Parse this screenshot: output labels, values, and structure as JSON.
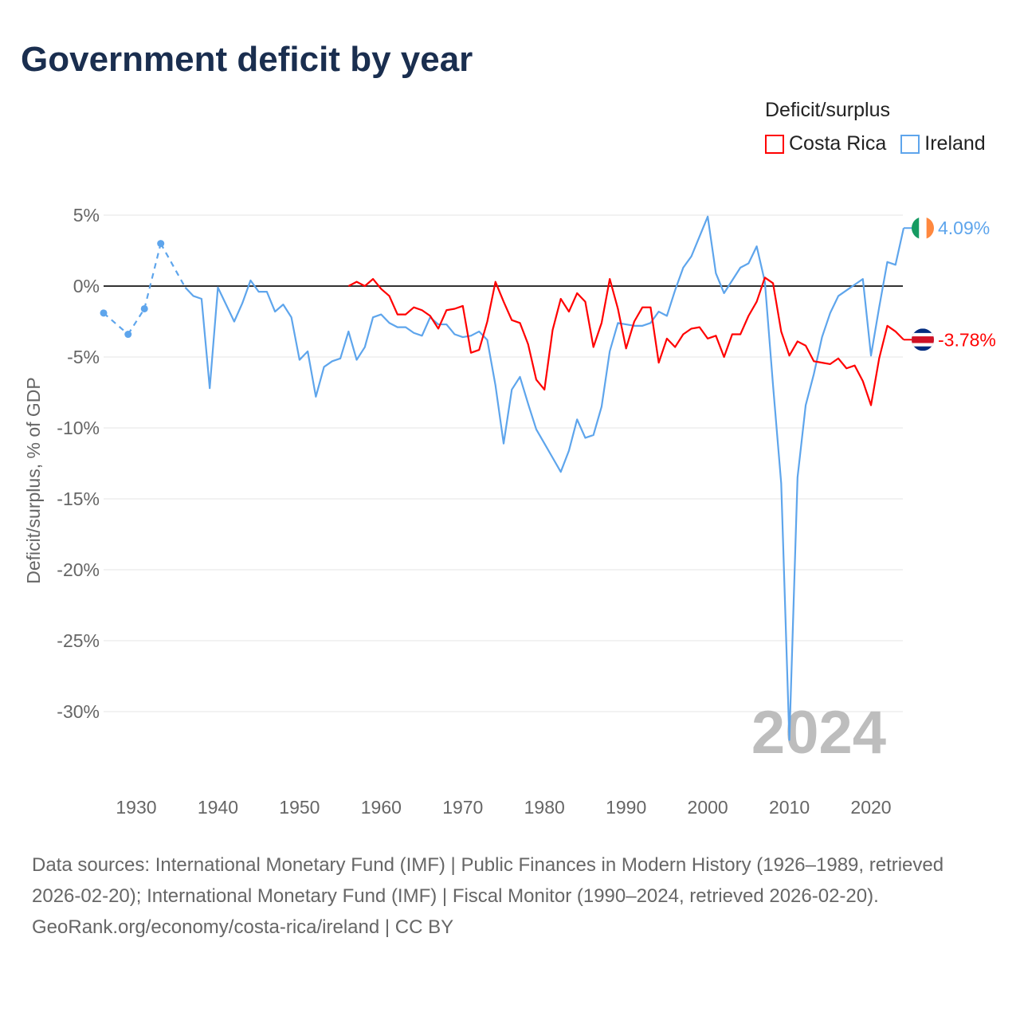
{
  "title": "Government deficit by year",
  "legend_title": "Deficit/surplus",
  "chart_data": {
    "type": "line",
    "title": "Government deficit by year",
    "xlabel": "",
    "ylabel": "Deficit/surplus, % of GDP",
    "xlim": [
      1926,
      2024
    ],
    "ylim": [
      -32,
      5
    ],
    "yticks": [
      5,
      0,
      -5,
      -10,
      -15,
      -20,
      -25,
      -30
    ],
    "ytick_labels": [
      "5%",
      "0%",
      "-5%",
      "-10%",
      "-15%",
      "-20%",
      "-25%",
      "-30%"
    ],
    "xticks": [
      1930,
      1940,
      1950,
      1960,
      1970,
      1980,
      1990,
      2000,
      2010,
      2020
    ],
    "xtick_labels": [
      "1930",
      "1940",
      "1950",
      "1960",
      "1970",
      "1980",
      "1990",
      "2000",
      "2010",
      "2020"
    ],
    "grid": true,
    "legend_position": "top-right",
    "year_watermark": "2024",
    "series": [
      {
        "name": "Costa Rica",
        "color": "#ff0000",
        "end_label": "-3.78%",
        "flag": "costa-rica-flag",
        "points": [
          [
            1956,
            0.0
          ],
          [
            1957,
            0.3
          ],
          [
            1958,
            0.0
          ],
          [
            1959,
            0.5
          ],
          [
            1960,
            -0.2
          ],
          [
            1961,
            -0.7
          ],
          [
            1962,
            -2.0
          ],
          [
            1963,
            -2.0
          ],
          [
            1964,
            -1.5
          ],
          [
            1965,
            -1.7
          ],
          [
            1966,
            -2.1
          ],
          [
            1967,
            -3.0
          ],
          [
            1968,
            -1.7
          ],
          [
            1969,
            -1.6
          ],
          [
            1970,
            -1.4
          ],
          [
            1971,
            -4.7
          ],
          [
            1972,
            -4.5
          ],
          [
            1973,
            -2.5
          ],
          [
            1974,
            0.3
          ],
          [
            1975,
            -1.1
          ],
          [
            1976,
            -2.4
          ],
          [
            1977,
            -2.6
          ],
          [
            1978,
            -4.1
          ],
          [
            1979,
            -6.6
          ],
          [
            1980,
            -7.3
          ],
          [
            1981,
            -3.1
          ],
          [
            1982,
            -0.9
          ],
          [
            1983,
            -1.8
          ],
          [
            1984,
            -0.5
          ],
          [
            1985,
            -1.1
          ],
          [
            1986,
            -4.3
          ],
          [
            1987,
            -2.6
          ],
          [
            1988,
            0.5
          ],
          [
            1989,
            -1.6
          ],
          [
            1990,
            -4.4
          ],
          [
            1991,
            -2.5
          ],
          [
            1992,
            -1.5
          ],
          [
            1993,
            -1.5
          ],
          [
            1994,
            -5.4
          ],
          [
            1995,
            -3.7
          ],
          [
            1996,
            -4.3
          ],
          [
            1997,
            -3.4
          ],
          [
            1998,
            -3.0
          ],
          [
            1999,
            -2.9
          ],
          [
            2000,
            -3.7
          ],
          [
            2001,
            -3.5
          ],
          [
            2002,
            -5.0
          ],
          [
            2003,
            -3.4
          ],
          [
            2004,
            -3.4
          ],
          [
            2005,
            -2.1
          ],
          [
            2006,
            -1.1
          ],
          [
            2007,
            0.6
          ],
          [
            2008,
            0.2
          ],
          [
            2009,
            -3.2
          ],
          [
            2010,
            -4.9
          ],
          [
            2011,
            -3.9
          ],
          [
            2012,
            -4.2
          ],
          [
            2013,
            -5.3
          ],
          [
            2014,
            -5.4
          ],
          [
            2015,
            -5.5
          ],
          [
            2016,
            -5.1
          ],
          [
            2017,
            -5.8
          ],
          [
            2018,
            -5.6
          ],
          [
            2019,
            -6.7
          ],
          [
            2020,
            -8.4
          ],
          [
            2021,
            -5.1
          ],
          [
            2022,
            -2.8
          ],
          [
            2023,
            -3.2
          ],
          [
            2024,
            -3.78
          ]
        ]
      },
      {
        "name": "Ireland",
        "color": "#5ea5ec",
        "end_label": "4.09%",
        "flag": "ireland-flag",
        "points": [
          [
            1926,
            -1.9
          ],
          [
            1929,
            -3.4
          ],
          [
            1931,
            -1.6
          ],
          [
            1933,
            3.0
          ],
          [
            1936,
            -0.1
          ],
          [
            1937,
            -0.7
          ],
          [
            1938,
            -0.9
          ],
          [
            1939,
            -7.2
          ],
          [
            1940,
            -0.1
          ],
          [
            1941,
            -1.3
          ],
          [
            1942,
            -2.5
          ],
          [
            1943,
            -1.2
          ],
          [
            1944,
            0.4
          ],
          [
            1945,
            -0.4
          ],
          [
            1946,
            -0.4
          ],
          [
            1947,
            -1.8
          ],
          [
            1948,
            -1.3
          ],
          [
            1949,
            -2.2
          ],
          [
            1950,
            -5.2
          ],
          [
            1951,
            -4.6
          ],
          [
            1952,
            -7.8
          ],
          [
            1953,
            -5.7
          ],
          [
            1954,
            -5.3
          ],
          [
            1955,
            -5.1
          ],
          [
            1956,
            -3.2
          ],
          [
            1957,
            -5.2
          ],
          [
            1958,
            -4.3
          ],
          [
            1959,
            -2.2
          ],
          [
            1960,
            -2.0
          ],
          [
            1961,
            -2.6
          ],
          [
            1962,
            -2.9
          ],
          [
            1963,
            -2.9
          ],
          [
            1964,
            -3.3
          ],
          [
            1965,
            -3.5
          ],
          [
            1966,
            -2.2
          ],
          [
            1967,
            -2.7
          ],
          [
            1968,
            -2.7
          ],
          [
            1969,
            -3.4
          ],
          [
            1970,
            -3.6
          ],
          [
            1971,
            -3.5
          ],
          [
            1972,
            -3.2
          ],
          [
            1973,
            -3.8
          ],
          [
            1974,
            -7.0
          ],
          [
            1975,
            -11.1
          ],
          [
            1976,
            -7.3
          ],
          [
            1977,
            -6.4
          ],
          [
            1978,
            -8.3
          ],
          [
            1979,
            -10.1
          ],
          [
            1980,
            -11.1
          ],
          [
            1981,
            -12.1
          ],
          [
            1982,
            -13.1
          ],
          [
            1983,
            -11.6
          ],
          [
            1984,
            -9.4
          ],
          [
            1985,
            -10.7
          ],
          [
            1986,
            -10.5
          ],
          [
            1987,
            -8.5
          ],
          [
            1988,
            -4.6
          ],
          [
            1989,
            -2.6
          ],
          [
            1990,
            -2.7
          ],
          [
            1991,
            -2.8
          ],
          [
            1992,
            -2.8
          ],
          [
            1993,
            -2.6
          ],
          [
            1994,
            -1.8
          ],
          [
            1995,
            -2.1
          ],
          [
            1996,
            -0.3
          ],
          [
            1997,
            1.3
          ],
          [
            1998,
            2.1
          ],
          [
            1999,
            3.5
          ],
          [
            2000,
            4.9
          ],
          [
            2001,
            0.9
          ],
          [
            2002,
            -0.5
          ],
          [
            2003,
            0.4
          ],
          [
            2004,
            1.3
          ],
          [
            2005,
            1.6
          ],
          [
            2006,
            2.8
          ],
          [
            2007,
            0.3
          ],
          [
            2008,
            -7.0
          ],
          [
            2009,
            -13.9
          ],
          [
            2010,
            -32.0
          ],
          [
            2011,
            -13.5
          ],
          [
            2012,
            -8.4
          ],
          [
            2013,
            -6.2
          ],
          [
            2014,
            -3.6
          ],
          [
            2015,
            -1.9
          ],
          [
            2016,
            -0.7
          ],
          [
            2017,
            -0.3
          ],
          [
            2018,
            0.1
          ],
          [
            2019,
            0.5
          ],
          [
            2020,
            -4.9
          ],
          [
            2021,
            -1.5
          ],
          [
            2022,
            1.7
          ],
          [
            2023,
            1.5
          ],
          [
            2024,
            4.09
          ]
        ]
      }
    ]
  },
  "footer": {
    "sources": "Data sources: International Monetary Fund (IMF) | Public Finances in Modern History (1926–1989, retrieved 2026-02-20); International Monetary Fund (IMF) | Fiscal Monitor (1990–2024, retrieved 2026-02-20).",
    "link": "GeoRank.org/economy/costa-rica/ireland | CC BY"
  }
}
